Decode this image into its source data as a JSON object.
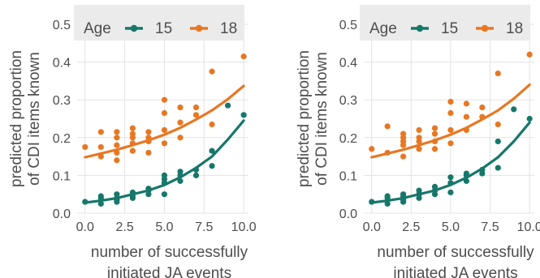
{
  "chart_data": [
    {
      "type": "scatter",
      "xlabel": [
        "number of successfully",
        "initiated JA events"
      ],
      "ylabel": [
        "predicted proportion",
        "of CDI items known"
      ],
      "xlim": [
        -0.5,
        10.3
      ],
      "ylim": [
        0,
        0.5
      ],
      "xticks": [
        "0.0",
        "2.5",
        "5.0",
        "7.5",
        "10.0"
      ],
      "yticks": [
        "0.0",
        "0.1",
        "0.2",
        "0.3",
        "0.4",
        "0.5"
      ],
      "grid": true,
      "legend": {
        "title": "Age",
        "position": "top"
      },
      "series": [
        {
          "name": "15",
          "color": "#16776a",
          "points": [
            [
              0,
              0.03
            ],
            [
              1,
              0.025
            ],
            [
              1,
              0.04
            ],
            [
              1,
              0.045
            ],
            [
              2,
              0.03
            ],
            [
              2,
              0.035
            ],
            [
              2,
              0.04
            ],
            [
              2,
              0.05
            ],
            [
              3,
              0.04
            ],
            [
              3,
              0.045
            ],
            [
              3,
              0.055
            ],
            [
              4,
              0.05
            ],
            [
              4,
              0.06
            ],
            [
              4,
              0.065
            ],
            [
              5,
              0.05
            ],
            [
              5,
              0.08
            ],
            [
              5,
              0.09
            ],
            [
              5,
              0.1
            ],
            [
              6,
              0.085
            ],
            [
              6,
              0.1
            ],
            [
              6,
              0.11
            ],
            [
              7,
              0.1
            ],
            [
              7,
              0.115
            ],
            [
              8,
              0.125
            ],
            [
              8,
              0.165
            ],
            [
              9,
              0.285
            ],
            [
              10,
              0.26
            ]
          ],
          "fit": [
            [
              0,
              0.028
            ],
            [
              1,
              0.033
            ],
            [
              2,
              0.04
            ],
            [
              3,
              0.05
            ],
            [
              4,
              0.06
            ],
            [
              5,
              0.075
            ],
            [
              6,
              0.095
            ],
            [
              7,
              0.12
            ],
            [
              8,
              0.15
            ],
            [
              9,
              0.195
            ],
            [
              10,
              0.245
            ]
          ]
        },
        {
          "name": "18",
          "color": "#e87722",
          "points": [
            [
              0,
              0.175
            ],
            [
              1,
              0.175
            ],
            [
              1,
              0.215
            ],
            [
              1,
              0.15
            ],
            [
              2,
              0.14
            ],
            [
              2,
              0.16
            ],
            [
              2,
              0.18
            ],
            [
              2,
              0.2
            ],
            [
              2,
              0.215
            ],
            [
              3,
              0.165
            ],
            [
              3,
              0.185
            ],
            [
              3,
              0.2
            ],
            [
              3,
              0.21
            ],
            [
              3,
              0.225
            ],
            [
              4,
              0.16
            ],
            [
              4,
              0.19
            ],
            [
              4,
              0.2
            ],
            [
              4,
              0.215
            ],
            [
              5,
              0.185
            ],
            [
              5,
              0.22
            ],
            [
              5,
              0.265
            ],
            [
              5,
              0.3
            ],
            [
              6,
              0.2
            ],
            [
              6,
              0.24
            ],
            [
              6,
              0.28
            ],
            [
              7,
              0.26
            ],
            [
              7,
              0.28
            ],
            [
              8,
              0.235
            ],
            [
              8,
              0.375
            ],
            [
              10,
              0.415
            ]
          ],
          "fit": [
            [
              0,
              0.148
            ],
            [
              1,
              0.158
            ],
            [
              2,
              0.168
            ],
            [
              3,
              0.18
            ],
            [
              4,
              0.193
            ],
            [
              5,
              0.208
            ],
            [
              6,
              0.226
            ],
            [
              7,
              0.248
            ],
            [
              8,
              0.272
            ],
            [
              9,
              0.302
            ],
            [
              10,
              0.337
            ]
          ]
        }
      ]
    },
    {
      "type": "scatter",
      "xlabel": [
        "number of successfully",
        "initiated JA events"
      ],
      "ylabel": [
        "predicted proportion",
        "of CDI items known"
      ],
      "xlim": [
        -0.5,
        10.3
      ],
      "ylim": [
        0,
        0.5
      ],
      "xticks": [
        "0.0",
        "2.5",
        "5.0",
        "7.5",
        "10.0"
      ],
      "yticks": [
        "0.0",
        "0.1",
        "0.2",
        "0.3",
        "0.4",
        "0.5"
      ],
      "grid": true,
      "legend": {
        "title": "Age",
        "position": "top"
      },
      "series": [
        {
          "name": "15",
          "color": "#16776a",
          "points": [
            [
              0,
              0.03
            ],
            [
              1,
              0.025
            ],
            [
              1,
              0.04
            ],
            [
              1,
              0.045
            ],
            [
              2,
              0.03
            ],
            [
              2,
              0.035
            ],
            [
              2,
              0.045
            ],
            [
              2,
              0.05
            ],
            [
              3,
              0.04
            ],
            [
              3,
              0.05
            ],
            [
              3,
              0.06
            ],
            [
              4,
              0.05
            ],
            [
              4,
              0.06
            ],
            [
              4,
              0.07
            ],
            [
              5,
              0.055
            ],
            [
              5,
              0.08
            ],
            [
              5,
              0.095
            ],
            [
              6,
              0.085
            ],
            [
              6,
              0.1
            ],
            [
              6,
              0.105
            ],
            [
              7,
              0.105
            ],
            [
              7,
              0.115
            ],
            [
              8,
              0.12
            ],
            [
              8,
              0.19
            ],
            [
              9,
              0.275
            ],
            [
              10,
              0.25
            ]
          ],
          "fit": [
            [
              0,
              0.028
            ],
            [
              1,
              0.033
            ],
            [
              2,
              0.04
            ],
            [
              3,
              0.05
            ],
            [
              4,
              0.06
            ],
            [
              5,
              0.075
            ],
            [
              6,
              0.094
            ],
            [
              7,
              0.118
            ],
            [
              8,
              0.148
            ],
            [
              9,
              0.19
            ],
            [
              10,
              0.24
            ]
          ]
        },
        {
          "name": "18",
          "color": "#e87722",
          "points": [
            [
              0,
              0.17
            ],
            [
              1,
              0.16
            ],
            [
              1,
              0.23
            ],
            [
              2,
              0.15
            ],
            [
              2,
              0.18
            ],
            [
              2,
              0.19
            ],
            [
              2,
              0.2
            ],
            [
              2,
              0.21
            ],
            [
              3,
              0.17
            ],
            [
              3,
              0.19
            ],
            [
              3,
              0.2
            ],
            [
              3,
              0.22
            ],
            [
              4,
              0.17
            ],
            [
              4,
              0.19
            ],
            [
              4,
              0.21
            ],
            [
              4,
              0.225
            ],
            [
              5,
              0.185
            ],
            [
              5,
              0.22
            ],
            [
              5,
              0.265
            ],
            [
              5,
              0.295
            ],
            [
              6,
              0.22
            ],
            [
              6,
              0.255
            ],
            [
              6,
              0.29
            ],
            [
              7,
              0.255
            ],
            [
              7,
              0.28
            ],
            [
              8,
              0.235
            ],
            [
              8,
              0.37
            ],
            [
              10,
              0.42
            ]
          ],
          "fit": [
            [
              0,
              0.148
            ],
            [
              1,
              0.158
            ],
            [
              2,
              0.168
            ],
            [
              3,
              0.18
            ],
            [
              4,
              0.193
            ],
            [
              5,
              0.208
            ],
            [
              6,
              0.226
            ],
            [
              7,
              0.248
            ],
            [
              8,
              0.272
            ],
            [
              9,
              0.303
            ],
            [
              10,
              0.34
            ]
          ]
        }
      ]
    }
  ]
}
